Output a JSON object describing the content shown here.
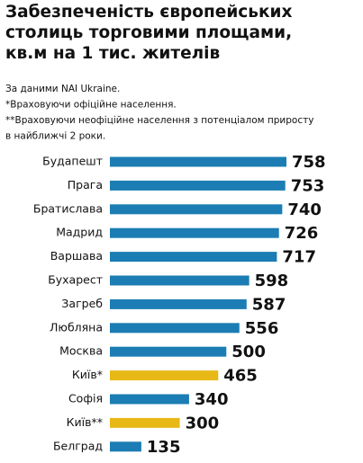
{
  "chart_data": {
    "type": "bar",
    "orientation": "horizontal",
    "title": [
      "Забезпеченість європейських",
      "столиць торговими площами,",
      "кв.м на 1 тис. жителів"
    ],
    "notes": [
      "За даними NAI Ukraine.",
      "*Враховуючи офіційне населення.",
      "**Враховуючи неофіційне населення з потенціалом приросту",
      "в найближчі 2 роки."
    ],
    "categories": [
      "Будапешт",
      "Прага",
      "Братислава",
      "Мадрид",
      "Варшава",
      "Бухарест",
      "Загреб",
      "Любляна",
      "Москва",
      "Київ*",
      "Софія",
      "Київ**",
      "Белград"
    ],
    "values": [
      758,
      753,
      740,
      726,
      717,
      598,
      587,
      556,
      500,
      465,
      340,
      300,
      135
    ],
    "colors": [
      "#1b7db3",
      "#1b7db3",
      "#1b7db3",
      "#1b7db3",
      "#1b7db3",
      "#1b7db3",
      "#1b7db3",
      "#1b7db3",
      "#1b7db3",
      "#e8b817",
      "#1b7db3",
      "#e8b817",
      "#1b7db3"
    ]
  }
}
